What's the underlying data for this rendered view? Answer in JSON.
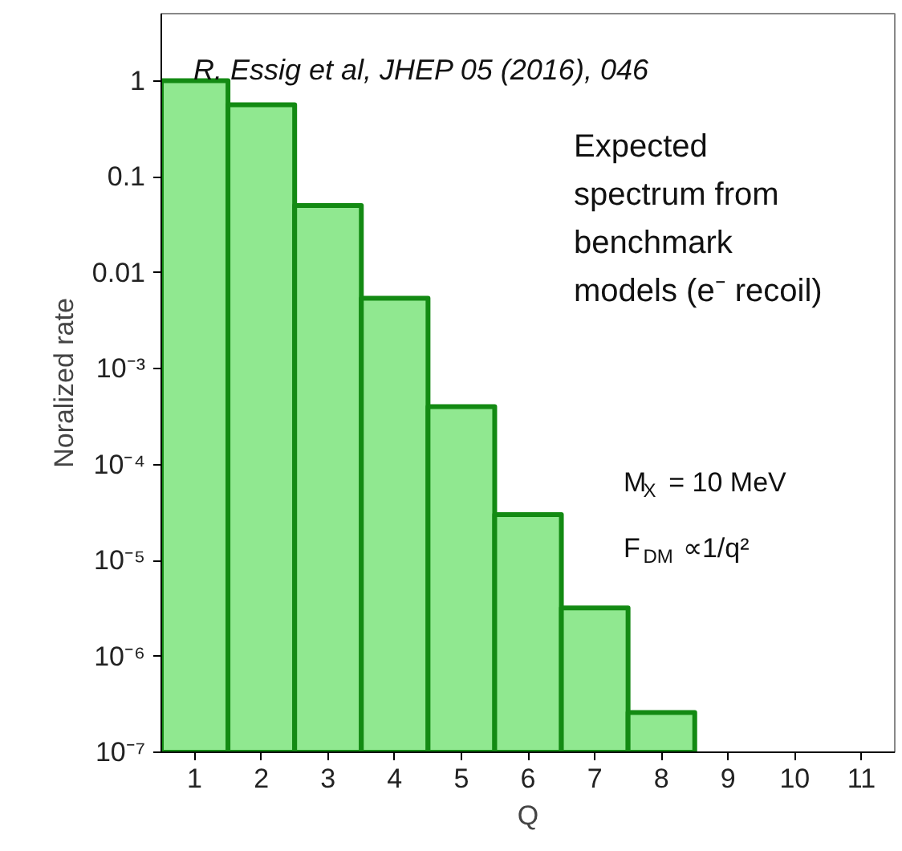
{
  "chart_data": {
    "type": "histogram",
    "xlabel": "Q",
    "ylabel": "Noralized rate",
    "bins": [
      0.5,
      1.5,
      2.5,
      3.5,
      4.5,
      5.5,
      6.5,
      7.5,
      8.5
    ],
    "values": [
      1,
      0.56,
      0.05,
      0.0054,
      0.0004,
      3e-05,
      3.2e-06,
      2.6e-07
    ],
    "color": "#90e890",
    "log": "y",
    "xlim": [
      0.5,
      11.5
    ],
    "xticks": [
      1,
      2,
      3,
      4,
      5,
      6,
      7,
      8,
      9,
      10,
      11
    ],
    "ylim": [
      1e-07,
      5
    ],
    "yticks": [
      {
        "value": 1e-07,
        "label": "10⁻⁷"
      },
      {
        "value": 1e-06,
        "label": "10⁻⁶"
      },
      {
        "value": 1e-05,
        "label": "10⁻⁵"
      },
      {
        "value": 0.0001,
        "label": "10⁻⁴"
      },
      {
        "value": 0.001,
        "label": "10⁻³"
      },
      0.01,
      0.1,
      1
    ],
    "grid": false,
    "annotations": [
      "R. Essig et al, JHEP 05 (2016), 046",
      "Expected\nspectrum from\nbenchmark\nmodels (e⁻ recoil)",
      "M$_{X}$ = 10 MeV",
      "F$_{DM}$ ∝1/q²"
    ]
  }
}
